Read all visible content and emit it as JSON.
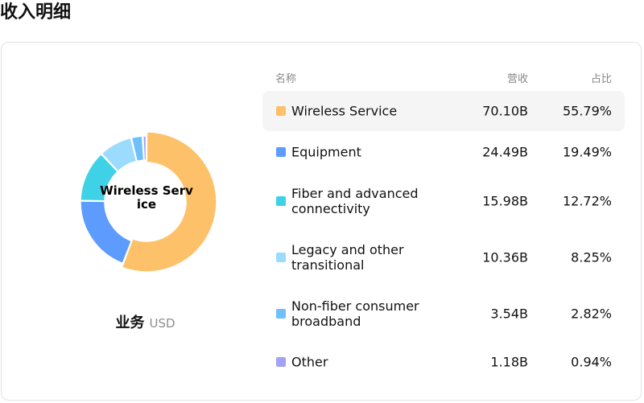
{
  "page": {
    "title": "收入明细"
  },
  "donut": {
    "center_label": "Wireless Service",
    "caption": "业务",
    "unit": "USD"
  },
  "table": {
    "headers": {
      "name": "名称",
      "revenue": "营收",
      "share": "占比"
    },
    "rows": [
      {
        "name": "Wireless Service",
        "revenue": "70.10B",
        "share": "55.79%",
        "color": "#FDC16A"
      },
      {
        "name": "Equipment",
        "revenue": "24.49B",
        "share": "19.49%",
        "color": "#5E9BFE"
      },
      {
        "name": "Fiber and advanced connectivity",
        "revenue": "15.98B",
        "share": "12.72%",
        "color": "#3FD2E6"
      },
      {
        "name": "Legacy and other transitional",
        "revenue": "10.36B",
        "share": "8.25%",
        "color": "#9ADBFE"
      },
      {
        "name": "Non-fiber consumer broadband",
        "revenue": "3.54B",
        "share": "2.82%",
        "color": "#6FC0FA"
      },
      {
        "name": "Other",
        "revenue": "1.18B",
        "share": "0.94%",
        "color": "#A3A3F5"
      }
    ]
  },
  "chart_data": {
    "type": "pie",
    "categories": [
      "Wireless Service",
      "Equipment",
      "Fiber and advanced connectivity",
      "Legacy and other transitional",
      "Non-fiber consumer broadband",
      "Other"
    ],
    "values": [
      70.1,
      24.49,
      15.98,
      10.36,
      3.54,
      1.18
    ],
    "shares_percent": [
      55.79,
      19.49,
      12.72,
      8.25,
      2.82,
      0.94
    ],
    "unit": "USD",
    "colors": [
      "#FDC16A",
      "#5E9BFE",
      "#3FD2E6",
      "#9ADBFE",
      "#6FC0FA",
      "#A3A3F5"
    ],
    "donut": true,
    "highlighted": "Wireless Service"
  }
}
